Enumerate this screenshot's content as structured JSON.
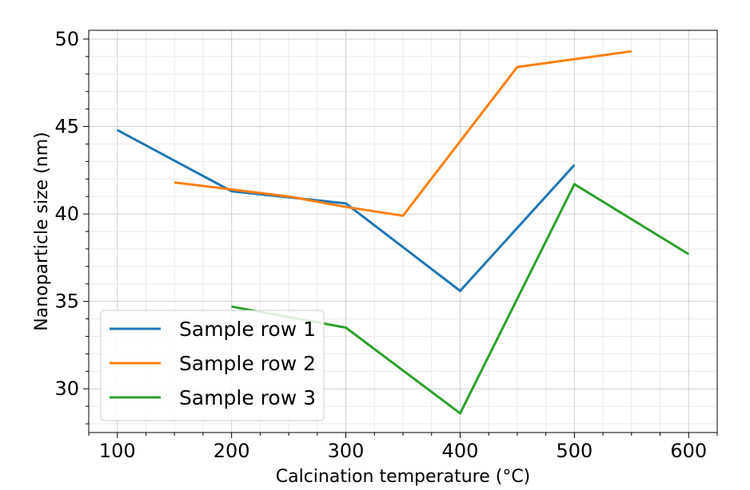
{
  "chart_data": {
    "type": "line",
    "xlabel": "Calcination temperature (°C)",
    "ylabel": "Nanoparticle size (nm)",
    "xlim": [
      75,
      625
    ],
    "ylim": [
      27.5,
      50.5
    ],
    "x_ticks": [
      100,
      200,
      300,
      400,
      500,
      600
    ],
    "y_ticks": [
      30,
      35,
      40,
      45,
      50
    ],
    "grid": true,
    "legend_position": "lower-left",
    "series": [
      {
        "name": "Sample row 1",
        "color": "#1f77b4",
        "x": [
          100,
          200,
          300,
          400,
          500
        ],
        "y": [
          44.8,
          41.3,
          40.6,
          35.6,
          42.8
        ]
      },
      {
        "name": "Sample row 2",
        "color": "#ff7f0e",
        "x": [
          150,
          250,
          300,
          350,
          450,
          550
        ],
        "y": [
          41.8,
          41.0,
          40.4,
          39.9,
          48.4,
          49.3
        ]
      },
      {
        "name": "Sample row 3",
        "color": "#2ca02c",
        "x": [
          200,
          300,
          400,
          500,
          600
        ],
        "y": [
          34.7,
          33.5,
          28.6,
          41.7,
          37.7
        ]
      }
    ]
  }
}
